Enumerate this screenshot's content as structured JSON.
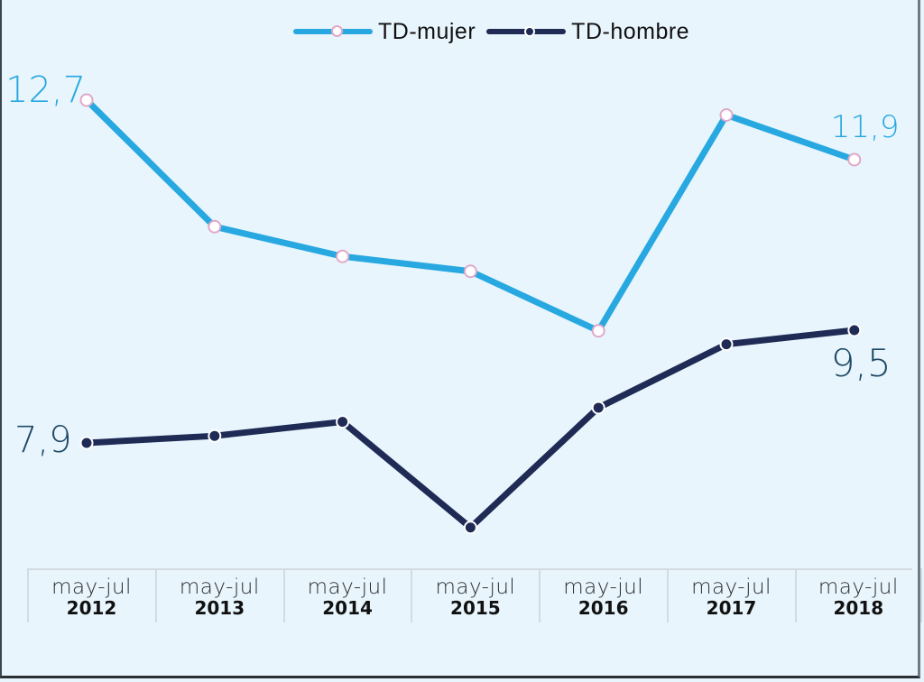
{
  "chart_data": {
    "type": "line",
    "title": "",
    "xlabel": "",
    "ylabel": "",
    "categories": [
      {
        "period": "may-jul",
        "year": "2012"
      },
      {
        "period": "may-jul",
        "year": "2013"
      },
      {
        "period": "may-jul",
        "year": "2014"
      },
      {
        "period": "may-jul",
        "year": "2015"
      },
      {
        "period": "may-jul",
        "year": "2016"
      },
      {
        "period": "may-jul",
        "year": "2017"
      },
      {
        "period": "may-jul",
        "year": "2018"
      }
    ],
    "series": [
      {
        "name": "TD-mujer",
        "color": "#27a8e0",
        "marker_fill": "#ffffff",
        "marker_stroke": "#e0a8c8",
        "values": [
          12.7,
          11.0,
          10.6,
          10.4,
          9.6,
          12.5,
          11.9
        ]
      },
      {
        "name": "TD-hombre",
        "color": "#1f2a55",
        "marker_fill": "#1f2a55",
        "marker_stroke": "#ffffff",
        "values": [
          7.9,
          8.0,
          8.2,
          6.7,
          8.4,
          9.3,
          9.5
        ]
      }
    ],
    "data_labels": [
      {
        "series": "TD-mujer",
        "index": 0,
        "text": "12,7",
        "color": "#27a8e0"
      },
      {
        "series": "TD-mujer",
        "index": 6,
        "text": "11,9",
        "color": "#27a8e0"
      },
      {
        "series": "TD-hombre",
        "index": 0,
        "text": "7,9",
        "color": "#1f4a66"
      },
      {
        "series": "TD-hombre",
        "index": 6,
        "text": "9,5",
        "color": "#1f4a66"
      }
    ],
    "ylim": [
      6,
      13.5
    ],
    "grid": false,
    "legend_position": "top-center"
  }
}
